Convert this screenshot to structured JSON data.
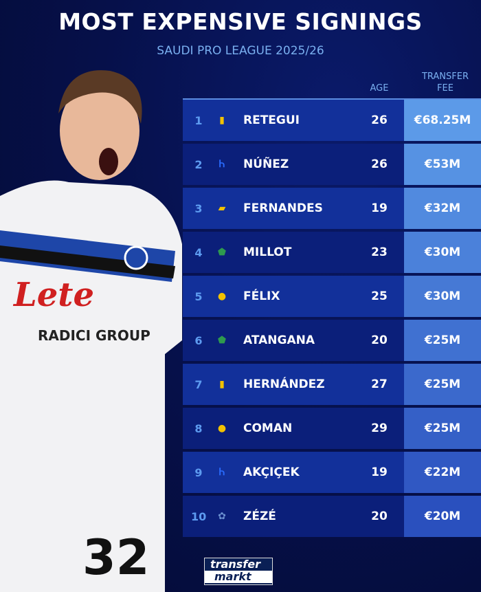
{
  "title": "MOST EXPENSIVE SIGNINGS",
  "subtitle": "SAUDI PRO LEAGUE 2025/26",
  "columns": {
    "age": "AGE",
    "fee": "TRANSFER FEE"
  },
  "rows": [
    {
      "rank": "1",
      "club_icon": "al-qadsiah-logo",
      "name": "RETEGUI",
      "age": "26",
      "fee": "€68.25M"
    },
    {
      "rank": "2",
      "club_icon": "al-hilal-logo",
      "name": "NÚÑEZ",
      "age": "26",
      "fee": "€53M"
    },
    {
      "rank": "3",
      "club_icon": "al-ittihad-logo",
      "name": "FERNANDES",
      "age": "19",
      "fee": "€32M"
    },
    {
      "rank": "4",
      "club_icon": "al-ahli-logo",
      "name": "MILLOT",
      "age": "23",
      "fee": "€30M"
    },
    {
      "rank": "5",
      "club_icon": "al-nassr-logo",
      "name": "FÉLIX",
      "age": "25",
      "fee": "€30M"
    },
    {
      "rank": "6",
      "club_icon": "al-ahli-logo",
      "name": "ATANGANA",
      "age": "20",
      "fee": "€25M"
    },
    {
      "rank": "7",
      "club_icon": "al-qadsiah-logo",
      "name": "HERNÁNDEZ",
      "age": "27",
      "fee": "€25M"
    },
    {
      "rank": "8",
      "club_icon": "al-nassr-logo",
      "name": "COMAN",
      "age": "29",
      "fee": "€25M"
    },
    {
      "rank": "9",
      "club_icon": "al-hilal-logo",
      "name": "AKÇIÇEK",
      "age": "19",
      "fee": "€22M"
    },
    {
      "rank": "10",
      "club_icon": "neom-logo",
      "name": "ZÉZÉ",
      "age": "20",
      "fee": "€20M"
    }
  ],
  "player_shirt": {
    "sponsor": "Lete",
    "sponsor2": "RADICI GROUP",
    "number": "32"
  },
  "branding": {
    "line1": "transfer",
    "line2": "markt"
  },
  "colors": {
    "accent": "#7ab0f0",
    "fee_top": "#5c9ae8",
    "fee_bottom": "#2a4fc0",
    "row_dark": "#0b1f7a",
    "row_light": "#12309a"
  }
}
